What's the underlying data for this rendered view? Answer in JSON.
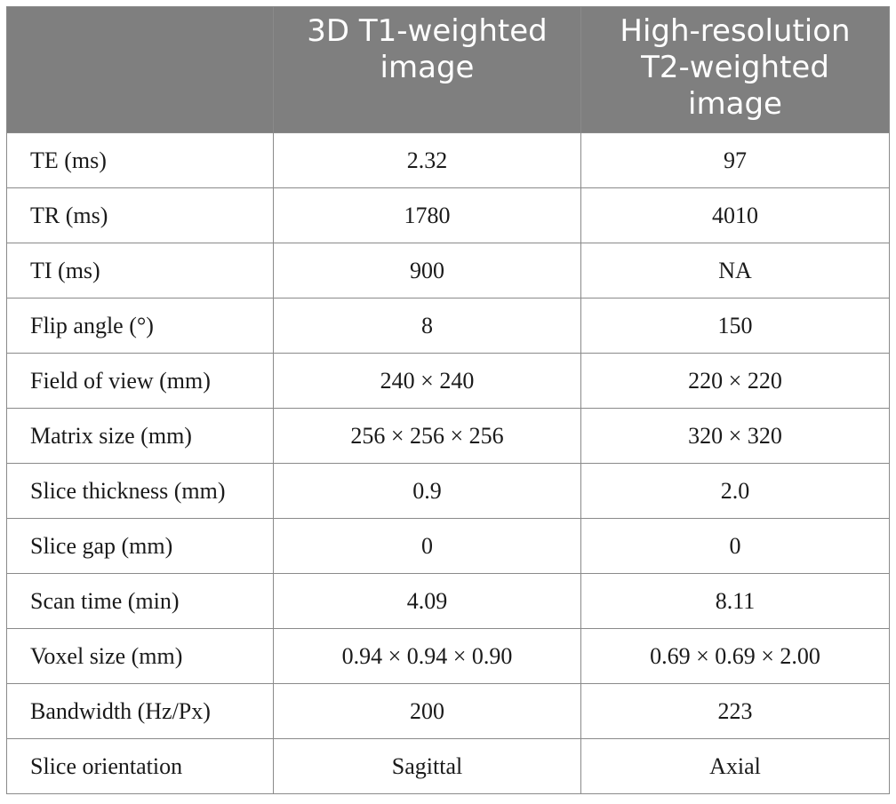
{
  "header": {
    "col0": "",
    "col1_lines": [
      "3D T1-weighted",
      "image"
    ],
    "col2_lines": [
      "High-resolution",
      "T2-weighted",
      "image"
    ]
  },
  "rows": [
    {
      "label": "TE (ms)",
      "t1": "2.32",
      "t2": "97"
    },
    {
      "label": "TR (ms)",
      "t1": "1780",
      "t2": "4010"
    },
    {
      "label": "TI (ms)",
      "t1": "900",
      "t2": "NA"
    },
    {
      "label": "Flip angle (°)",
      "t1": "8",
      "t2": "150"
    },
    {
      "label": "Field of view (mm)",
      "t1": "240 × 240",
      "t2": "220 × 220"
    },
    {
      "label": "Matrix size (mm)",
      "t1": "256 × 256 × 256",
      "t2": "320 × 320"
    },
    {
      "label": "Slice thickness (mm)",
      "t1": "0.9",
      "t2": "2.0"
    },
    {
      "label": "Slice gap (mm)",
      "t1": "0",
      "t2": "0"
    },
    {
      "label": "Scan time (min)",
      "t1": "4.09",
      "t2": "8.11"
    },
    {
      "label": "Voxel size (mm)",
      "t1": "0.94 × 0.94 × 0.90",
      "t2": "0.69 × 0.69 × 2.00"
    },
    {
      "label": "Bandwidth (Hz/Px)",
      "t1": "200",
      "t2": "223"
    },
    {
      "label": "Slice orientation",
      "t1": "Sagittal",
      "t2": "Axial"
    }
  ],
  "colors": {
    "header_bg": "#7f7f7f",
    "header_text": "#ffffff",
    "border": "#8a8a8a",
    "body_text": "#1a1a1a"
  }
}
